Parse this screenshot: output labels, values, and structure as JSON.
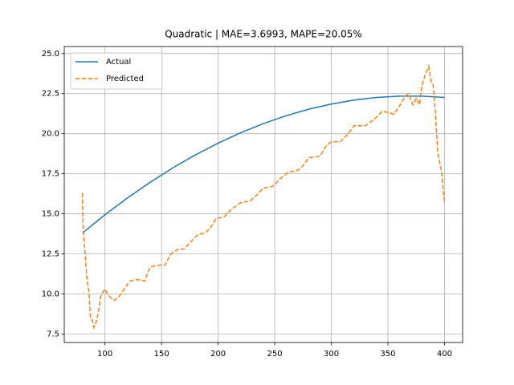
{
  "chart_data": {
    "type": "line",
    "title": "Quadratic | MAE=3.6993, MAPE=20.05%",
    "xlim": [
      64,
      416
    ],
    "ylim": [
      6.97,
      25.44
    ],
    "xticks": [
      100,
      150,
      200,
      250,
      300,
      350,
      400
    ],
    "yticks": [
      7.5,
      {
        "value": 10,
        "label": "10.0"
      },
      12.5,
      {
        "value": 15,
        "label": "15.0"
      },
      17.5,
      {
        "value": 20,
        "label": "20.0"
      },
      22.5,
      {
        "value": 25,
        "label": "25.0"
      }
    ],
    "grid": true,
    "legend": "upper left",
    "series": [
      {
        "name": "Actual",
        "color": "#1f77b4",
        "linestyle": "solid",
        "x": [
          80,
          100,
          120,
          140,
          160,
          180,
          200,
          220,
          240,
          260,
          280,
          300,
          320,
          340,
          360,
          380,
          400
        ],
        "values": [
          13.8,
          14.94,
          16.0,
          16.97,
          17.87,
          18.68,
          19.41,
          20.06,
          20.63,
          21.12,
          21.53,
          21.85,
          22.1,
          22.26,
          22.34,
          22.34,
          22.26
        ]
      },
      {
        "name": "Predicted",
        "color": "#ff7f0e",
        "linestyle": "dashed",
        "x": [
          80,
          80.5,
          81,
          84,
          86,
          87,
          89,
          90,
          92,
          94,
          95,
          96,
          98,
          100,
          103,
          108,
          112,
          118,
          122,
          128,
          135,
          140,
          148,
          153,
          158,
          165,
          170,
          175,
          182,
          188,
          193,
          198,
          205,
          212,
          220,
          228,
          233,
          240,
          248,
          255,
          262,
          270,
          275,
          280,
          290,
          295,
          300,
          308,
          315,
          320,
          330,
          338,
          345,
          352,
          355,
          360,
          365,
          368,
          372,
          375,
          378,
          380,
          383,
          386,
          388,
          390,
          392,
          394,
          397,
          400
        ],
        "values": [
          16.3,
          14.5,
          13.8,
          11.0,
          10.0,
          8.6,
          8.3,
          7.9,
          8.2,
          8.8,
          9.2,
          9.8,
          10.1,
          10.3,
          9.9,
          9.6,
          9.8,
          10.4,
          10.8,
          10.9,
          10.8,
          11.7,
          11.8,
          11.8,
          12.5,
          12.8,
          12.8,
          13.2,
          13.7,
          13.8,
          14.1,
          14.7,
          14.8,
          15.3,
          15.7,
          15.8,
          16.1,
          16.6,
          16.7,
          17.2,
          17.6,
          17.7,
          18.0,
          18.5,
          18.6,
          19.2,
          19.5,
          19.5,
          20.0,
          20.5,
          20.5,
          20.9,
          21.4,
          21.3,
          21.2,
          21.7,
          22.3,
          22.5,
          21.8,
          22.2,
          21.8,
          23.0,
          23.7,
          24.2,
          23.3,
          23.0,
          21.3,
          18.8,
          17.8,
          15.7
        ]
      }
    ]
  }
}
